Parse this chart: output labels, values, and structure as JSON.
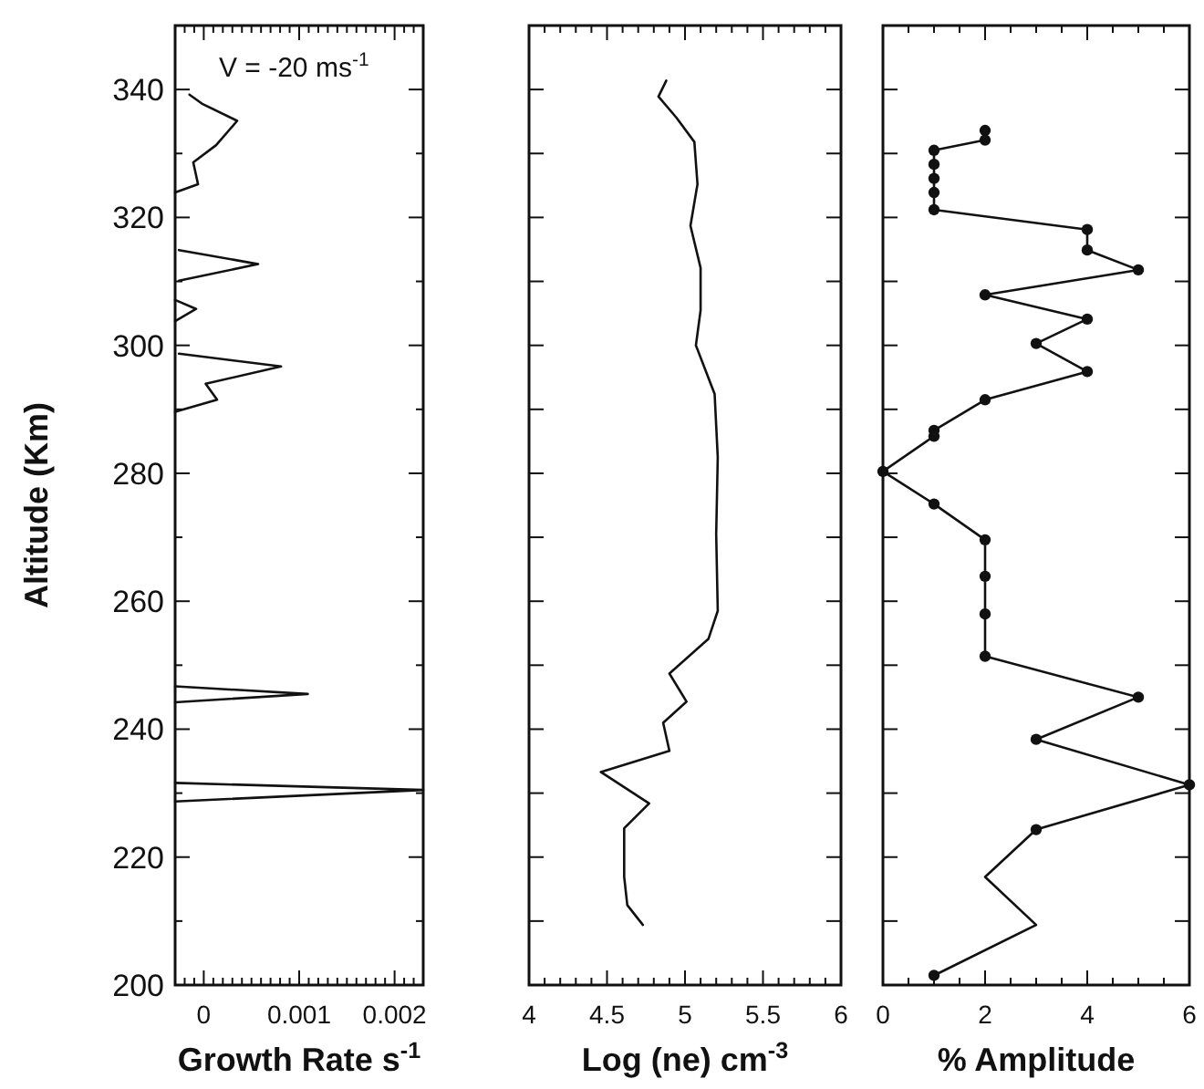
{
  "chart_data": [
    {
      "type": "line",
      "xlabel": "Growth Rate s$^{-1}$",
      "ylabel": "Altitude (Km)",
      "annotations": [
        "V = -20 ms$^{-1}$"
      ],
      "xlim": [
        -0.0003,
        0.0023
      ],
      "ylim": [
        200,
        350
      ],
      "xticks": [
        {
          "value": -0.0002,
          "label": null
        },
        {
          "value": -0.0001,
          "label": null
        },
        0,
        {
          "value": 0.0001,
          "label": null
        },
        {
          "value": 0.0002,
          "label": null
        },
        {
          "value": 0.0003,
          "label": null
        },
        {
          "value": 0.0004,
          "label": null
        },
        {
          "value": 0.0005,
          "label": null
        },
        {
          "value": 0.0006,
          "label": null
        },
        {
          "value": 0.0007,
          "label": null
        },
        {
          "value": 0.0008,
          "label": null
        },
        {
          "value": 0.0009,
          "label": null
        },
        0.001,
        {
          "value": 0.0011,
          "label": null
        },
        {
          "value": 0.0012,
          "label": null
        },
        {
          "value": 0.0013,
          "label": null
        },
        {
          "value": 0.0014,
          "label": null
        },
        {
          "value": 0.0015,
          "label": null
        },
        {
          "value": 0.0016,
          "label": null
        },
        {
          "value": 0.0017,
          "label": null
        },
        {
          "value": 0.0018,
          "label": null
        },
        {
          "value": 0.0019,
          "label": null
        },
        0.002,
        {
          "value": 0.0021,
          "label": null
        },
        {
          "value": 0.0022,
          "label": null
        }
      ],
      "yticks": [
        200,
        {
          "value": 210,
          "label": null
        },
        220,
        {
          "value": 230,
          "label": null
        },
        240,
        {
          "value": 250,
          "label": null
        },
        260,
        {
          "value": 270,
          "label": null
        },
        280,
        {
          "value": 290,
          "label": null
        },
        300,
        {
          "value": 310,
          "label": null
        },
        320,
        {
          "value": 330,
          "label": null
        },
        340
      ],
      "series": [
        {
          "color": "#111111",
          "x": [
            -0.00015,
            -2e-05,
            0.00035,
            0.00013,
            -0.00011,
            -6e-05,
            -0.0003,
            null,
            -0.00026,
            0.00057,
            -0.00026,
            null,
            -0.0003,
            -8e-05,
            -0.0003,
            null,
            -0.00026,
            0.00081,
            2e-05,
            0.00014,
            -0.0003,
            null,
            -0.0003,
            0.00109,
            -0.0003,
            null,
            -0.0003,
            0.0023,
            -0.0003
          ],
          "values": [
            339.2,
            337.8,
            335.1,
            331.3,
            328.6,
            325.2,
            323.9,
            null,
            314.9,
            312.7,
            310.1,
            null,
            307.1,
            305.7,
            303.8,
            null,
            298.7,
            296.7,
            294.0,
            291.5,
            289.6,
            null,
            246.7,
            245.5,
            244.2,
            null,
            231.6,
            230.5,
            228.7
          ]
        }
      ]
    },
    {
      "type": "line",
      "xlabel": "Log (ne) cm$^{-3}$",
      "xlim": [
        4,
        6
      ],
      "ylim": [
        200,
        350
      ],
      "tick_labels": "x",
      "xticks": [
        4,
        {
          "value": 4.1,
          "label": null
        },
        {
          "value": 4.2,
          "label": null
        },
        {
          "value": 4.3,
          "label": null
        },
        {
          "value": 4.4,
          "label": null
        },
        4.5,
        {
          "value": 4.6,
          "label": null
        },
        {
          "value": 4.7,
          "label": null
        },
        {
          "value": 4.8,
          "label": null
        },
        {
          "value": 4.9,
          "label": null
        },
        5,
        {
          "value": 5.1,
          "label": null
        },
        {
          "value": 5.2,
          "label": null
        },
        {
          "value": 5.3,
          "label": null
        },
        {
          "value": 5.4,
          "label": null
        },
        5.5,
        {
          "value": 5.6,
          "label": null
        },
        {
          "value": 5.7,
          "label": null
        },
        {
          "value": 5.8,
          "label": null
        },
        {
          "value": 5.9,
          "label": null
        },
        6
      ],
      "yticks": [
        200,
        210,
        220,
        230,
        240,
        250,
        260,
        270,
        280,
        290,
        300,
        310,
        320,
        330,
        340
      ],
      "series": [
        {
          "color": "#111111",
          "x": [
            4.88,
            4.83,
            4.945,
            5.06,
            5.08,
            5.035,
            5.1,
            5.1,
            5.07,
            5.19,
            5.21,
            5.2,
            5.21,
            5.15,
            4.9,
            5.01,
            4.86,
            4.9,
            4.46,
            4.77,
            4.61,
            4.61,
            4.63,
            4.73
          ],
          "values": [
            341.4,
            338.9,
            335.6,
            331.8,
            325.2,
            318.7,
            312.1,
            305.5,
            300.0,
            292.4,
            282.5,
            270.5,
            258.5,
            254.1,
            248.7,
            244.3,
            241.0,
            236.6,
            233.3,
            228.4,
            224.5,
            216.9,
            212.5,
            209.4
          ]
        }
      ]
    },
    {
      "type": "line",
      "xlabel": "% Amplitude",
      "xlim": [
        0,
        6
      ],
      "ylim": [
        200,
        350
      ],
      "tick_labels": "x",
      "xticks": [
        0,
        {
          "value": 0.5,
          "label": null
        },
        {
          "value": 1,
          "label": null
        },
        {
          "value": 1.5,
          "label": null
        },
        2,
        {
          "value": 2.5,
          "label": null
        },
        {
          "value": 3,
          "label": null
        },
        {
          "value": 3.5,
          "label": null
        },
        4,
        {
          "value": 4.5,
          "label": null
        },
        {
          "value": 5,
          "label": null
        },
        {
          "value": 5.5,
          "label": null
        },
        6
      ],
      "yticks": [
        200,
        210,
        220,
        230,
        240,
        250,
        260,
        270,
        280,
        290,
        300,
        310,
        320,
        330,
        340
      ],
      "series": [
        {
          "color": "#111111",
          "marker": "none",
          "x": [
            2,
            2,
            1,
            1,
            1,
            1,
            1,
            4,
            4,
            5,
            2,
            4,
            3,
            4,
            2,
            1,
            1,
            0,
            1,
            2,
            2,
            2,
            2,
            5,
            3,
            6,
            3,
            2,
            3,
            1
          ],
          "values": [
            333.6,
            332.1,
            330.5,
            328.3,
            326.1,
            323.9,
            321.2,
            318.1,
            314.9,
            311.8,
            307.9,
            304.1,
            300.3,
            295.9,
            291.5,
            286.7,
            285.8,
            280.3,
            275.2,
            269.6,
            263.9,
            258.0,
            251.4,
            245.0,
            238.4,
            231.3,
            224.3,
            216.9,
            209.4,
            201.5
          ]
        },
        {
          "type": "scatter",
          "color": "#111111",
          "marker": "circle",
          "x": [
            2,
            2,
            1,
            1,
            1,
            1,
            1,
            4,
            4,
            5,
            2,
            4,
            3,
            4,
            2,
            1,
            1,
            0,
            1,
            2,
            2,
            2,
            2,
            5,
            3,
            6,
            3,
            1
          ],
          "values": [
            333.6,
            332.1,
            330.5,
            328.3,
            326.1,
            323.9,
            321.2,
            318.1,
            314.9,
            311.8,
            307.9,
            304.1,
            300.3,
            295.9,
            291.5,
            286.7,
            285.8,
            280.3,
            275.2,
            269.6,
            263.9,
            258.0,
            251.4,
            245.0,
            238.4,
            231.3,
            224.3,
            201.5
          ]
        }
      ]
    }
  ]
}
